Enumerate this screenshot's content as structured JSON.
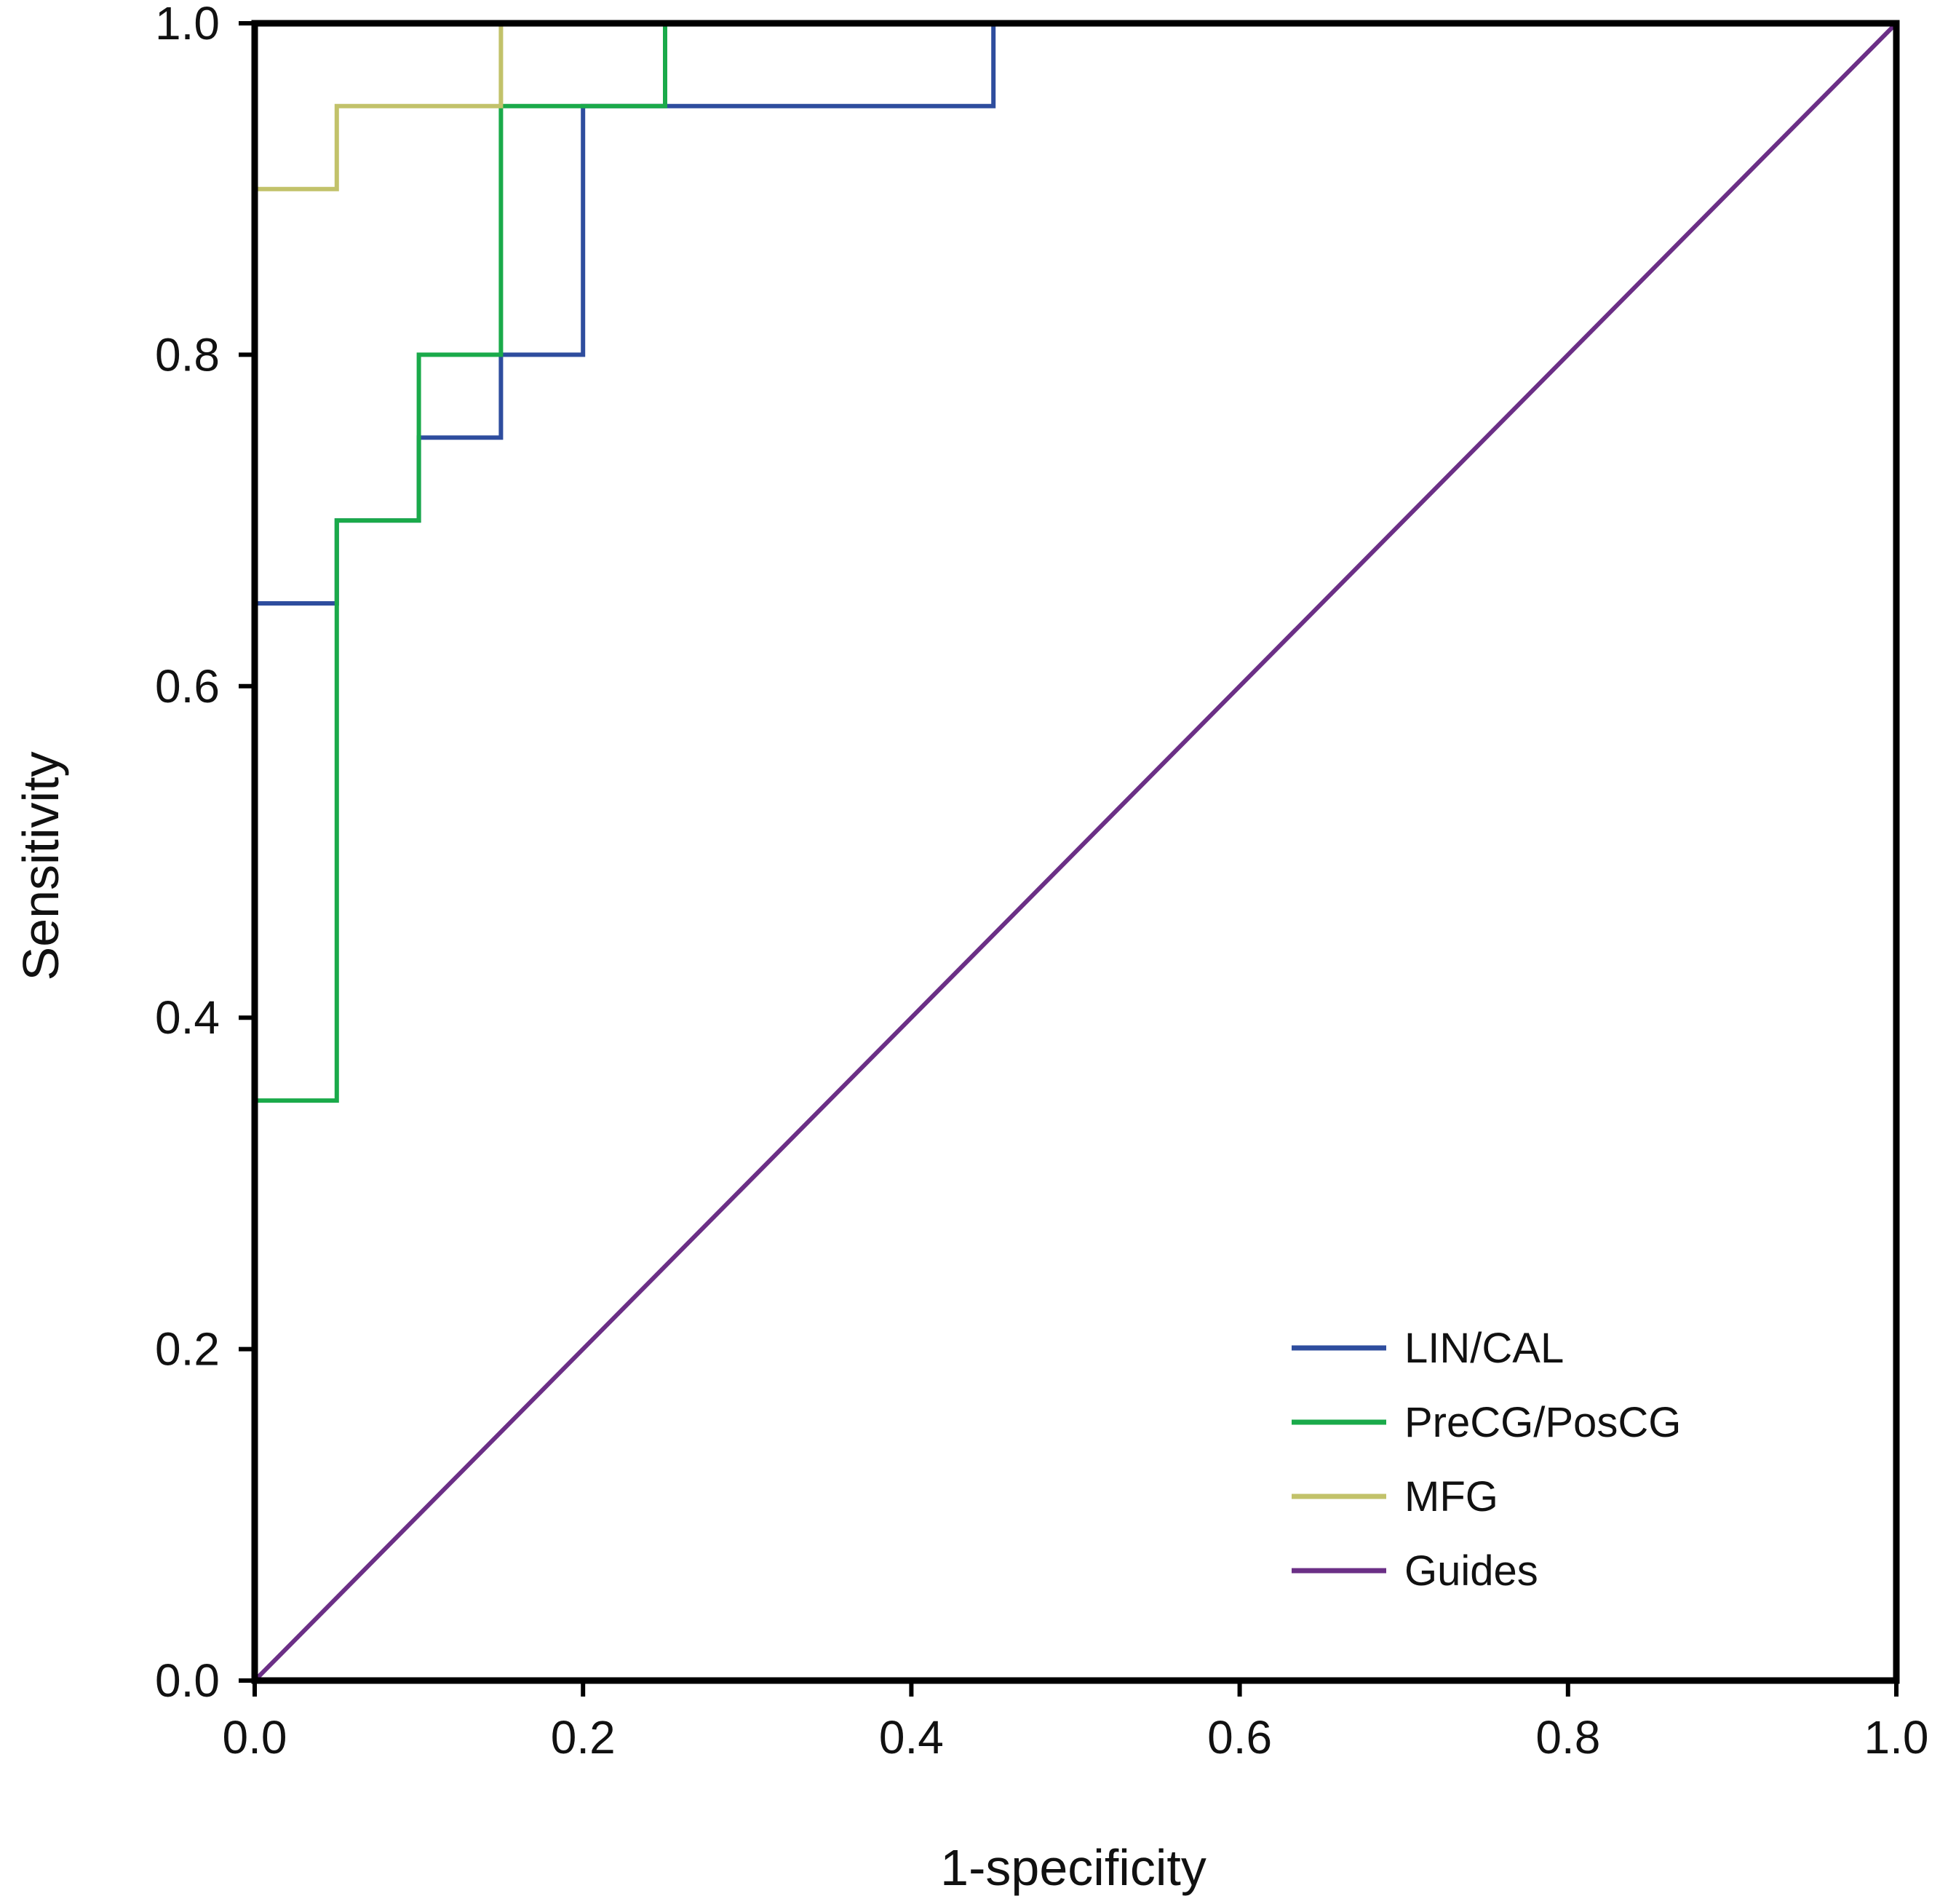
{
  "chart_data": {
    "type": "line",
    "title": "",
    "xlabel": "1-specificity",
    "ylabel": "Sensitivity",
    "xlim": [
      0,
      1
    ],
    "ylim": [
      0,
      1
    ],
    "xticks": [
      0.0,
      0.2,
      0.4,
      0.6,
      0.8,
      1.0
    ],
    "yticks": [
      0.0,
      0.2,
      0.4,
      0.6,
      0.8,
      1.0
    ],
    "x_tick_labels": [
      "0.0",
      "0.2",
      "0.4",
      "0.6",
      "0.8",
      "1.0"
    ],
    "y_tick_labels": [
      "0.0",
      "0.2",
      "0.4",
      "0.6",
      "0.8",
      "1.0"
    ],
    "grid": false,
    "legend_position": "bottom-right",
    "series": [
      {
        "name": "LIN/CAL",
        "color": "#2e4d9e",
        "x": [
          0,
          0,
          0.05,
          0.05,
          0.1,
          0.1,
          0.15,
          0.15,
          0.2,
          0.2,
          0.45,
          0.45,
          1.0
        ],
        "y": [
          0,
          0.65,
          0.65,
          0.7,
          0.7,
          0.75,
          0.75,
          0.8,
          0.8,
          0.95,
          0.95,
          1.0,
          1.0
        ]
      },
      {
        "name": "PreCG/PosCG",
        "color": "#1aaa4a",
        "x": [
          0,
          0,
          0.05,
          0.05,
          0.1,
          0.1,
          0.15,
          0.15,
          0.25,
          0.25,
          1.0
        ],
        "y": [
          0,
          0.35,
          0.35,
          0.7,
          0.7,
          0.8,
          0.8,
          0.95,
          0.95,
          1.0,
          1.0
        ]
      },
      {
        "name": "MFG",
        "color": "#c2c26a",
        "x": [
          0,
          0,
          0.05,
          0.05,
          0.15,
          0.15,
          1.0
        ],
        "y": [
          0,
          0.9,
          0.9,
          0.95,
          0.95,
          1.0,
          1.0
        ]
      },
      {
        "name": "Guides",
        "color": "#6b2f86",
        "x": [
          0,
          1
        ],
        "y": [
          0,
          1
        ]
      }
    ]
  }
}
